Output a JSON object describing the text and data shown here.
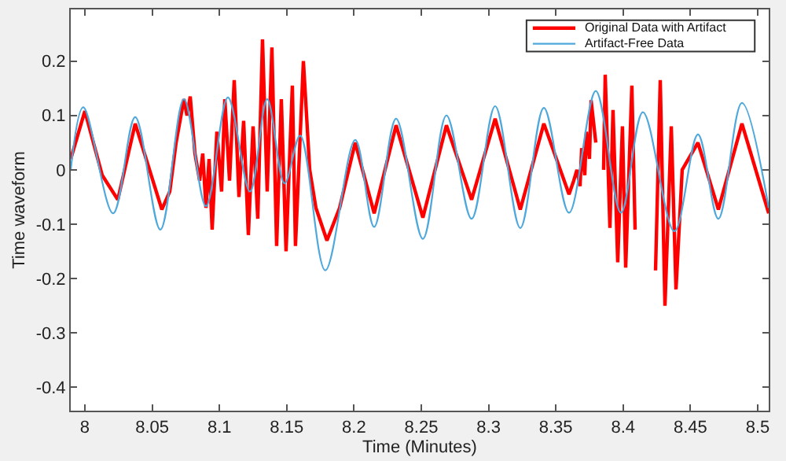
{
  "chart_data": {
    "type": "line",
    "xlabel": "Time (Minutes)",
    "ylabel": "Time waveform",
    "xlim": [
      7.9895,
      8.5082
    ],
    "ylim": [
      -0.443,
      0.295
    ],
    "xticks": [
      8,
      8.05,
      8.1,
      8.15,
      8.2,
      8.25,
      8.3,
      8.35,
      8.4,
      8.45,
      8.5
    ],
    "yticks": [
      -0.4,
      -0.3,
      -0.2,
      -0.1,
      0,
      0.1,
      0.2
    ],
    "legend": "top right",
    "marker": "none",
    "line_style": "solid",
    "series": [
      {
        "name": "Original Data with Artifact",
        "color": "#ff0000",
        "x": [
          7.9895,
          8.0,
          8.0129,
          8.0245,
          8.0374,
          8.0572,
          8.0631,
          8.0678,
          8.0736,
          8.0759,
          8.0783,
          8.0818,
          8.0853,
          8.0876,
          8.09,
          8.0923,
          8.0946,
          8.0981,
          8.1016,
          8.104,
          8.1075,
          8.111,
          8.1145,
          8.118,
          8.1215,
          8.125,
          8.1285,
          8.132,
          8.1355,
          8.139,
          8.1425,
          8.146,
          8.1495,
          8.1542,
          8.1565,
          8.1624,
          8.1671,
          8.1717,
          8.1799,
          8.1893,
          8.2009,
          8.215,
          8.2313,
          8.2512,
          8.2687,
          8.2874,
          8.3049,
          8.3236,
          8.3411,
          8.3598,
          8.3633,
          8.3657,
          8.368,
          8.3692,
          8.3715,
          8.3727,
          8.375,
          8.3762,
          8.3797,
          8.382,
          8.3855,
          8.3867,
          8.3902,
          8.3925,
          8.396,
          8.3995,
          8.4019,
          8.4065,
          8.4089,
          8.4124,
          8.4159,
          8.4194,
          8.4241,
          8.4276,
          8.4311,
          8.4358,
          8.4393,
          8.4439,
          8.4556,
          8.4708,
          8.4883,
          8.5082
        ],
        "values": [
          0.02,
          0.108,
          -0.01,
          -0.055,
          0.085,
          -0.073,
          -0.04,
          0.05,
          0.13,
          0.1,
          0.135,
          0.03,
          -0.02,
          0.03,
          -0.07,
          0.02,
          -0.11,
          0.07,
          -0.04,
          0.13,
          -0.02,
          0.165,
          -0.05,
          0.09,
          -0.12,
          0.08,
          -0.09,
          0.24,
          -0.04,
          0.225,
          -0.14,
          0.13,
          -0.15,
          0.155,
          -0.14,
          0.2,
          0.0,
          -0.07,
          -0.13,
          -0.07,
          0.05,
          -0.08,
          0.082,
          -0.088,
          0.082,
          -0.055,
          0.094,
          -0.073,
          0.085,
          -0.045,
          -0.02,
          0.0,
          -0.03,
          0.04,
          -0.01,
          0.07,
          0.02,
          0.128,
          0.05,
          null,
          0.0,
          0.175,
          -0.107,
          0.11,
          -0.17,
          0.08,
          -0.18,
          0.155,
          -0.11,
          null,
          null,
          null,
          -0.185,
          0.165,
          -0.25,
          0.08,
          -0.22,
          0.0,
          0.05,
          -0.073,
          0.085,
          -0.08
        ]
      },
      {
        "name": "Artifact-Free Data",
        "color": "#4fa8dc",
        "x": [
          7.9895,
          7.9988,
          8.021,
          8.0374,
          8.0561,
          8.0736,
          8.09,
          8.1063,
          8.1227,
          8.1355,
          8.1484,
          8.16,
          8.1787,
          8.2009,
          8.215,
          8.2313,
          8.2512,
          8.2687,
          8.2874,
          8.3049,
          8.3236,
          8.3411,
          8.3598,
          8.3797,
          8.3984,
          8.4147,
          8.4381,
          8.4556,
          8.4708,
          8.4883,
          8.5082
        ],
        "values": [
          0.0,
          0.115,
          -0.08,
          0.097,
          -0.11,
          0.13,
          -0.067,
          0.133,
          -0.04,
          0.13,
          -0.025,
          0.063,
          -0.185,
          0.055,
          -0.105,
          0.094,
          -0.127,
          0.1,
          -0.09,
          0.117,
          -0.107,
          0.114,
          -0.079,
          0.145,
          -0.079,
          0.106,
          -0.113,
          0.065,
          -0.09,
          0.123,
          -0.07
        ]
      }
    ]
  }
}
